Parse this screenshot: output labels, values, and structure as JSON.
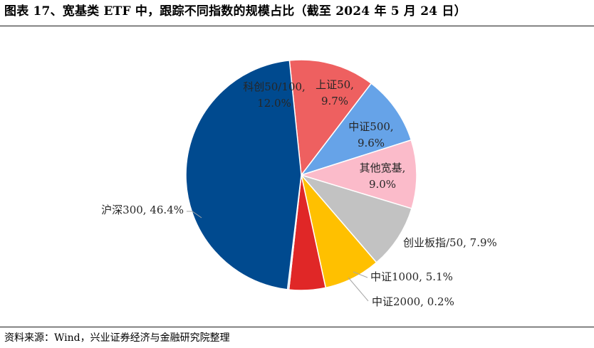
{
  "title": "图表 17、宽基类 ETF 中，跟踪不同指数的规模占比（截至 2024 年 5 月 24 日）",
  "source": "资料来源：Wind，兴业证券经济与金融研究院整理",
  "chart_data": {
    "type": "pie",
    "unit": "%",
    "slices": [
      {
        "name": "沪深300",
        "value": 46.4,
        "label": "沪深300, 46.4%",
        "color": "#004a8f"
      },
      {
        "name": "科创50/100",
        "value": 12.0,
        "label_lines": [
          "科创50/100,",
          "12.0%"
        ],
        "color": "#ee6060"
      },
      {
        "name": "上证50",
        "value": 9.7,
        "label_lines": [
          "上证50,",
          "9.7%"
        ],
        "color": "#66a3e8"
      },
      {
        "name": "中证500",
        "value": 9.6,
        "label_lines": [
          "中证500,",
          "9.6%"
        ],
        "color": "#fbbbca"
      },
      {
        "name": "其他宽基",
        "value": 9.0,
        "label_lines": [
          "其他宽基,",
          "9.0%"
        ],
        "color": "#c2c2c2"
      },
      {
        "name": "创业板指/50",
        "value": 7.9,
        "label": "创业板指/50, 7.9%",
        "color": "#ffc000"
      },
      {
        "name": "中证1000",
        "value": 5.1,
        "label": "中证1000, 5.1%",
        "color": "#e02727"
      },
      {
        "name": "中证2000",
        "value": 0.2,
        "label": "中证2000, 0.2%",
        "color": "#7ab3ea"
      }
    ]
  }
}
